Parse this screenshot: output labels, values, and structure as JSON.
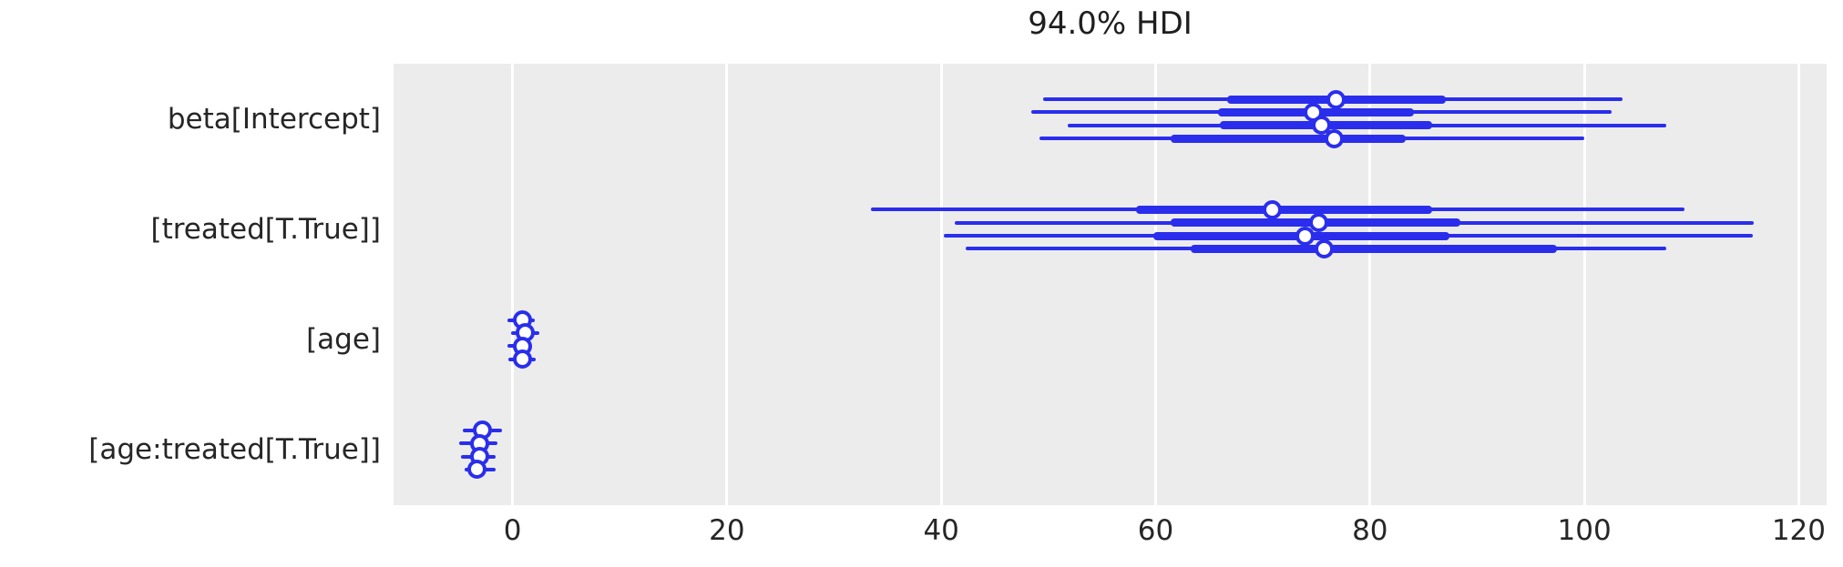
{
  "title": "94.0% HDI",
  "colors": {
    "accent_blue": "#2a2eec",
    "plot_background": "#ececec",
    "gridline": "#ffffff",
    "text": "#262626"
  },
  "chart_data": {
    "type": "forest",
    "title": "94.0% HDI",
    "xlabel": "",
    "ylabel": "",
    "grid": true,
    "legend": "none",
    "x_range": [
      -11.1,
      122.6
    ],
    "x_ticks": [
      0,
      20,
      40,
      60,
      80,
      100,
      120
    ],
    "glyphs": {
      "thin_line": "HDI interval",
      "thick_line": "interquartile range",
      "dot": "median"
    },
    "rows": [
      {
        "label": "beta[Intercept]",
        "chains": [
          {
            "hdi_lo": 49.5,
            "q_lo": 66.7,
            "median": 76.8,
            "q_hi": 87.1,
            "hdi_hi": 103.6
          },
          {
            "hdi_lo": 48.4,
            "q_lo": 65.8,
            "median": 74.7,
            "q_hi": 84.1,
            "hdi_hi": 102.5
          },
          {
            "hdi_lo": 51.8,
            "q_lo": 66.0,
            "median": 75.5,
            "q_hi": 85.8,
            "hdi_hi": 107.6
          },
          {
            "hdi_lo": 49.2,
            "q_lo": 61.4,
            "median": 76.7,
            "q_hi": 83.3,
            "hdi_hi": 100.0
          }
        ]
      },
      {
        "label": "[treated[T.True]]",
        "chains": [
          {
            "hdi_lo": 33.4,
            "q_lo": 58.2,
            "median": 70.9,
            "q_hi": 85.8,
            "hdi_hi": 109.3
          },
          {
            "hdi_lo": 41.3,
            "q_lo": 61.4,
            "median": 75.2,
            "q_hi": 88.4,
            "hdi_hi": 115.8
          },
          {
            "hdi_lo": 40.2,
            "q_lo": 59.8,
            "median": 73.9,
            "q_hi": 87.4,
            "hdi_hi": 115.7
          },
          {
            "hdi_lo": 42.3,
            "q_lo": 63.3,
            "median": 75.7,
            "q_hi": 97.4,
            "hdi_hi": 107.6
          }
        ]
      },
      {
        "label": "[age]",
        "chains": [
          {
            "hdi_lo": -0.5,
            "q_lo": 0.4,
            "median": 0.9,
            "q_hi": 1.4,
            "hdi_hi": 2.1
          },
          {
            "hdi_lo": -0.1,
            "q_lo": 0.7,
            "median": 1.2,
            "q_hi": 1.7,
            "hdi_hi": 2.5
          },
          {
            "hdi_lo": -0.5,
            "q_lo": 0.4,
            "median": 0.9,
            "q_hi": 1.4,
            "hdi_hi": 1.8
          },
          {
            "hdi_lo": -0.4,
            "q_lo": 0.4,
            "median": 0.9,
            "q_hi": 1.4,
            "hdi_hi": 2.2
          }
        ]
      },
      {
        "label": "[age:treated[T.True]]",
        "chains": [
          {
            "hdi_lo": -4.6,
            "q_lo": -3.3,
            "median": -2.8,
            "q_hi": -2.3,
            "hdi_hi": -1.0
          },
          {
            "hdi_lo": -5.0,
            "q_lo": -3.6,
            "median": -3.1,
            "q_hi": -2.6,
            "hdi_hi": -1.4
          },
          {
            "hdi_lo": -4.8,
            "q_lo": -3.6,
            "median": -3.1,
            "q_hi": -2.6,
            "hdi_hi": -1.6
          },
          {
            "hdi_lo": -4.5,
            "q_lo": -3.8,
            "median": -3.3,
            "q_hi": -2.8,
            "hdi_hi": -1.6
          }
        ]
      }
    ]
  }
}
